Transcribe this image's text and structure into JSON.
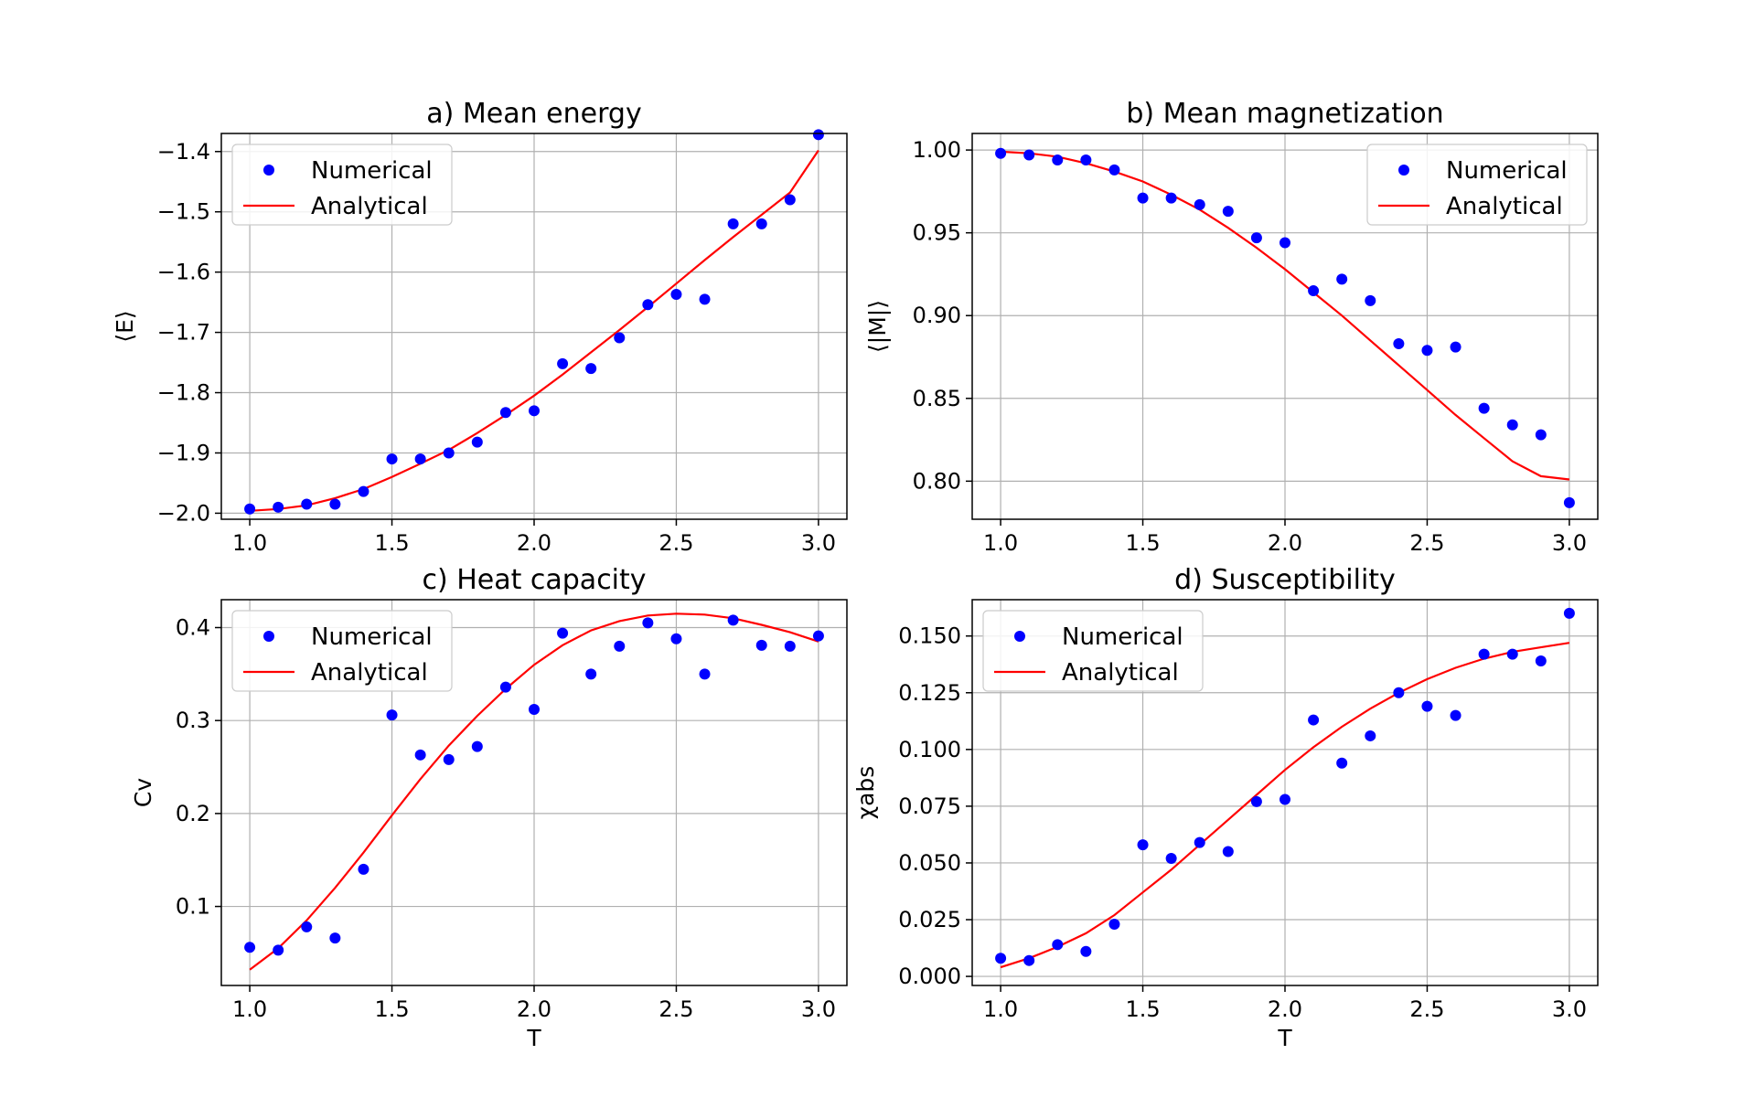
{
  "colors": {
    "numerical": "#0000ff",
    "analytical": "#ff0000"
  },
  "chart_data": [
    {
      "type": "line",
      "title": "a) Mean energy",
      "xlabel": "",
      "ylabel": "⟨E⟩",
      "xlim": [
        0.9,
        3.1
      ],
      "ylim": [
        -2.01,
        -1.37
      ],
      "xticks": [
        "1.0",
        "1.5",
        "2.0",
        "2.5",
        "3.0"
      ],
      "xtick_values": [
        1.0,
        1.5,
        2.0,
        2.5,
        3.0
      ],
      "yticks": [
        "−2.0",
        "−1.9",
        "−1.8",
        "−1.7",
        "−1.6",
        "−1.5",
        "−1.4"
      ],
      "ytick_values": [
        -2.0,
        -1.9,
        -1.8,
        -1.7,
        -1.6,
        -1.5,
        -1.4
      ],
      "grid": true,
      "legend_position": "top-left",
      "x": [
        1.0,
        1.1,
        1.2,
        1.3,
        1.4,
        1.5,
        1.6,
        1.7,
        1.8,
        1.9,
        2.0,
        2.1,
        2.2,
        2.3,
        2.4,
        2.5,
        2.6,
        2.7,
        2.8,
        2.9,
        3.0
      ],
      "series": [
        {
          "name": "Numerical",
          "kind": "scatter",
          "values": [
            -1.993,
            -1.99,
            -1.985,
            -1.985,
            -1.964,
            -1.91,
            -1.91,
            -1.9,
            -1.882,
            -1.833,
            -1.83,
            -1.752,
            -1.76,
            -1.709,
            -1.654,
            -1.637,
            -1.645,
            -1.52,
            -1.52,
            -1.48,
            -1.372
          ]
        },
        {
          "name": "Analytical",
          "kind": "line",
          "values": [
            -1.996,
            -1.993,
            -1.987,
            -1.975,
            -1.96,
            -1.94,
            -1.918,
            -1.895,
            -1.867,
            -1.837,
            -1.805,
            -1.77,
            -1.733,
            -1.696,
            -1.658,
            -1.619,
            -1.58,
            -1.542,
            -1.505,
            -1.468,
            -1.398
          ]
        }
      ]
    },
    {
      "type": "line",
      "title": "b) Mean magnetization",
      "xlabel": "",
      "ylabel": "⟨|M|⟩",
      "xlim": [
        0.9,
        3.1
      ],
      "ylim": [
        0.777,
        1.01
      ],
      "xticks": [
        "1.0",
        "1.5",
        "2.0",
        "2.5",
        "3.0"
      ],
      "xtick_values": [
        1.0,
        1.5,
        2.0,
        2.5,
        3.0
      ],
      "yticks": [
        "0.80",
        "0.85",
        "0.90",
        "0.95",
        "1.00"
      ],
      "ytick_values": [
        0.8,
        0.85,
        0.9,
        0.95,
        1.0
      ],
      "grid": true,
      "legend_position": "top-right",
      "x": [
        1.0,
        1.1,
        1.2,
        1.3,
        1.4,
        1.5,
        1.6,
        1.7,
        1.8,
        1.9,
        2.0,
        2.1,
        2.2,
        2.3,
        2.4,
        2.5,
        2.6,
        2.7,
        2.8,
        2.9,
        3.0
      ],
      "series": [
        {
          "name": "Numerical",
          "kind": "scatter",
          "values": [
            0.998,
            0.997,
            0.994,
            0.994,
            0.988,
            0.971,
            0.971,
            0.967,
            0.963,
            0.947,
            0.944,
            0.915,
            0.922,
            0.909,
            0.883,
            0.879,
            0.881,
            0.844,
            0.834,
            0.828,
            0.787
          ]
        },
        {
          "name": "Analytical",
          "kind": "line",
          "values": [
            0.999,
            0.998,
            0.996,
            0.992,
            0.987,
            0.981,
            0.973,
            0.964,
            0.953,
            0.941,
            0.928,
            0.914,
            0.9,
            0.885,
            0.87,
            0.855,
            0.84,
            0.826,
            0.812,
            0.803,
            0.801
          ]
        }
      ]
    },
    {
      "type": "line",
      "title": "c) Heat capacity",
      "xlabel": "T",
      "ylabel": "Cv",
      "xlim": [
        0.9,
        3.1
      ],
      "ylim": [
        0.015,
        0.43
      ],
      "xticks": [
        "1.0",
        "1.5",
        "2.0",
        "2.5",
        "3.0"
      ],
      "xtick_values": [
        1.0,
        1.5,
        2.0,
        2.5,
        3.0
      ],
      "yticks": [
        "0.1",
        "0.2",
        "0.3",
        "0.4"
      ],
      "ytick_values": [
        0.1,
        0.2,
        0.3,
        0.4
      ],
      "grid": true,
      "legend_position": "top-left",
      "x": [
        1.0,
        1.1,
        1.2,
        1.3,
        1.4,
        1.5,
        1.6,
        1.7,
        1.8,
        1.9,
        2.0,
        2.1,
        2.2,
        2.3,
        2.4,
        2.5,
        2.6,
        2.7,
        2.8,
        2.9,
        3.0
      ],
      "series": [
        {
          "name": "Numerical",
          "kind": "scatter",
          "values": [
            0.056,
            0.053,
            0.078,
            0.066,
            0.14,
            0.306,
            0.263,
            0.258,
            0.272,
            0.336,
            0.312,
            0.394,
            0.35,
            0.38,
            0.405,
            0.388,
            0.35,
            0.408,
            0.381,
            0.38,
            0.391
          ]
        },
        {
          "name": "Analytical",
          "kind": "line",
          "values": [
            0.032,
            0.055,
            0.085,
            0.12,
            0.158,
            0.198,
            0.237,
            0.273,
            0.305,
            0.334,
            0.36,
            0.381,
            0.397,
            0.407,
            0.413,
            0.415,
            0.414,
            0.41,
            0.403,
            0.395,
            0.385
          ]
        }
      ]
    },
    {
      "type": "line",
      "title": "d) Susceptibility",
      "xlabel": "T",
      "ylabel": "χabs",
      "xlim": [
        0.9,
        3.1
      ],
      "ylim": [
        -0.004,
        0.166
      ],
      "xticks": [
        "1.0",
        "1.5",
        "2.0",
        "2.5",
        "3.0"
      ],
      "xtick_values": [
        1.0,
        1.5,
        2.0,
        2.5,
        3.0
      ],
      "yticks": [
        "0.000",
        "0.025",
        "0.050",
        "0.075",
        "0.100",
        "0.125",
        "0.150"
      ],
      "ytick_values": [
        0.0,
        0.025,
        0.05,
        0.075,
        0.1,
        0.125,
        0.15
      ],
      "grid": true,
      "legend_position": "top-left",
      "x": [
        1.0,
        1.1,
        1.2,
        1.3,
        1.4,
        1.5,
        1.6,
        1.7,
        1.8,
        1.9,
        2.0,
        2.1,
        2.2,
        2.3,
        2.4,
        2.5,
        2.6,
        2.7,
        2.8,
        2.9,
        3.0
      ],
      "series": [
        {
          "name": "Numerical",
          "kind": "scatter",
          "values": [
            0.008,
            0.007,
            0.014,
            0.011,
            0.023,
            0.058,
            0.052,
            0.059,
            0.055,
            0.077,
            0.078,
            0.113,
            0.094,
            0.106,
            0.125,
            0.119,
            0.115,
            0.142,
            0.142,
            0.139,
            0.16
          ]
        },
        {
          "name": "Analytical",
          "kind": "line",
          "values": [
            0.004,
            0.008,
            0.013,
            0.019,
            0.027,
            0.037,
            0.047,
            0.058,
            0.069,
            0.08,
            0.091,
            0.101,
            0.11,
            0.118,
            0.125,
            0.131,
            0.136,
            0.14,
            0.143,
            0.145,
            0.147
          ]
        }
      ]
    }
  ]
}
